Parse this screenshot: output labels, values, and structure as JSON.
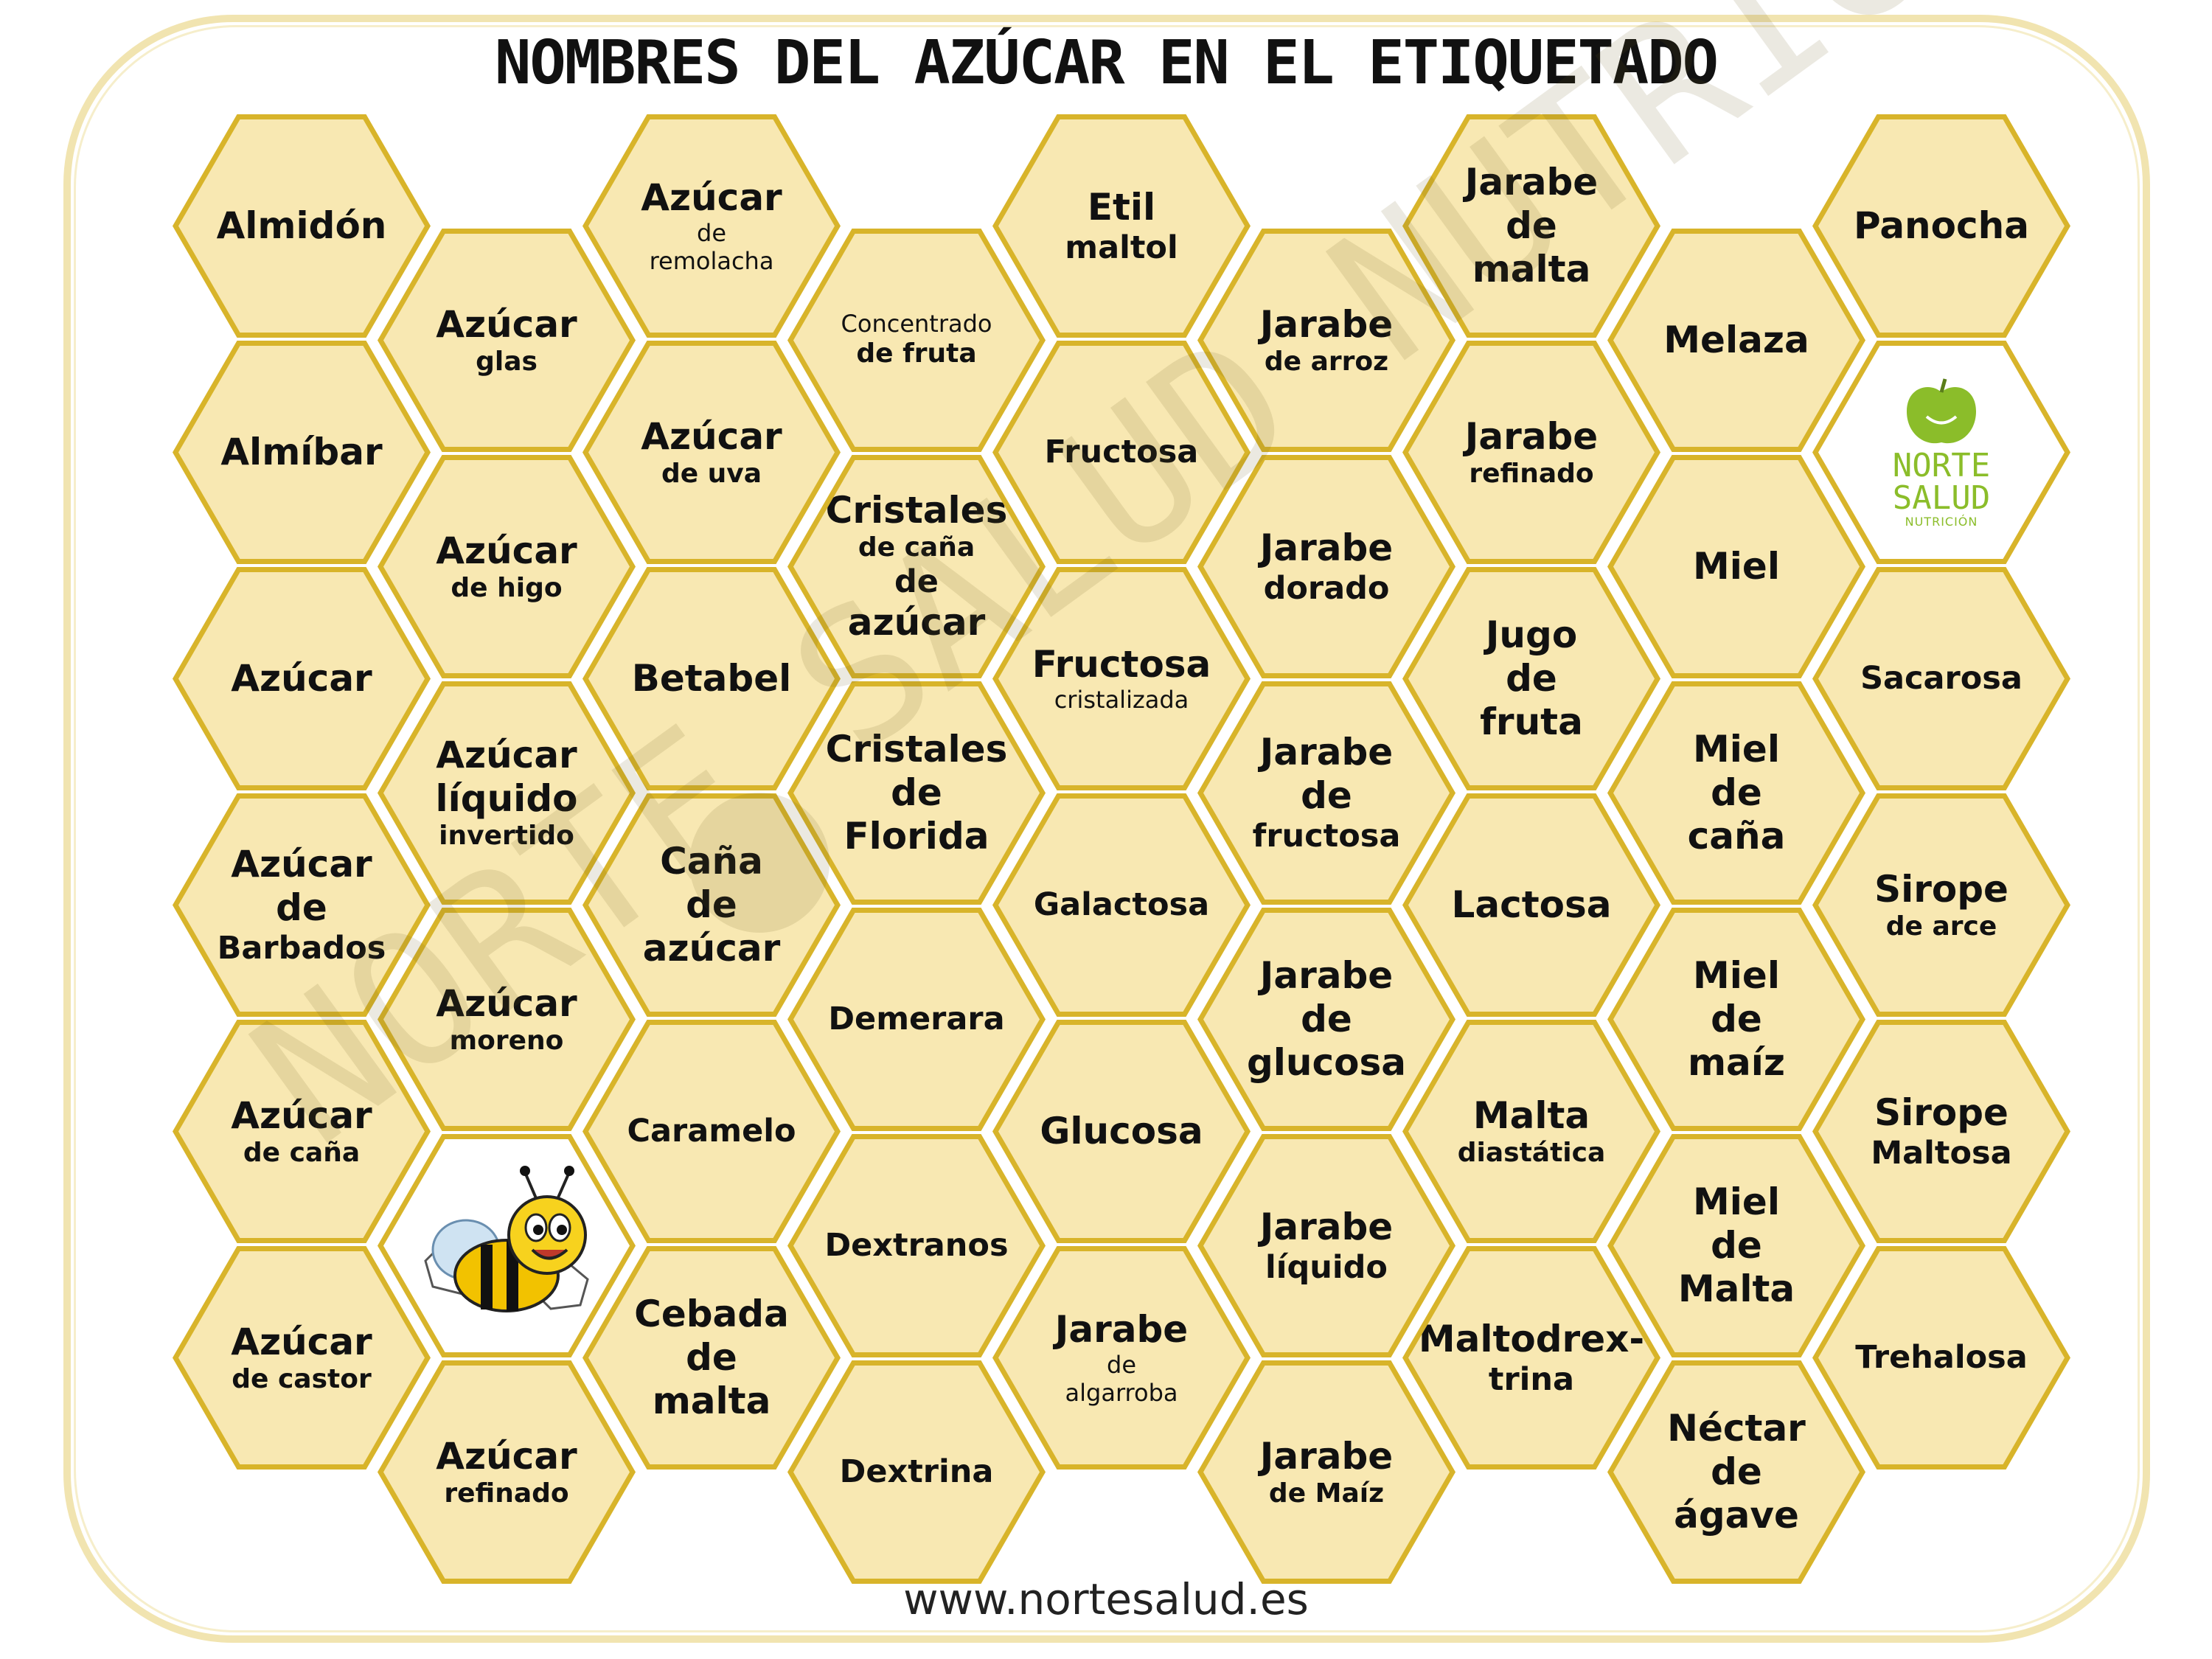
{
  "title": "NOMBRES DEL AZÚCAR EN EL ETIQUETADO",
  "footer": "www.nortesalud.es",
  "watermark": "NORTE SALUD NUTRICIÓN",
  "logo": {
    "line1": "NORTE",
    "line2": "SALUD",
    "line3": "NUTRICIÓN"
  },
  "colors": {
    "hex_border": "#d8b42a",
    "hex_fill": "#f8e8b2",
    "frame": "#f1e4b0",
    "logo_green": "#8bbd2a"
  },
  "columns": [
    {
      "cells": [
        {
          "lines": [
            "Almidón"
          ]
        },
        {
          "lines": [
            "Almíbar"
          ]
        },
        {
          "lines": [
            "Azúcar"
          ]
        },
        {
          "lines": [
            "Azúcar",
            "de",
            "Barbados"
          ]
        },
        {
          "lines": [
            "Azúcar",
            "de caña"
          ]
        },
        {
          "lines": [
            "Azúcar",
            "de castor"
          ]
        }
      ]
    },
    {
      "cells": [
        {
          "lines": [
            "Azúcar",
            "glas"
          ]
        },
        {
          "lines": [
            "Azúcar",
            "de higo"
          ]
        },
        {
          "lines": [
            "Azúcar",
            "líquido",
            "invertido"
          ]
        },
        {
          "lines": [
            "Azúcar",
            "moreno"
          ]
        },
        {
          "image": "bee-icon"
        },
        {
          "lines": [
            "Azúcar",
            "refinado"
          ]
        }
      ]
    },
    {
      "cells": [
        {
          "lines": [
            "Azúcar",
            "de",
            "remolacha"
          ]
        },
        {
          "lines": [
            "Azúcar",
            "de uva"
          ]
        },
        {
          "lines": [
            "Betabel"
          ]
        },
        {
          "lines": [
            "Caña",
            "de",
            "azúcar"
          ]
        },
        {
          "lines": [
            "Caramelo"
          ]
        },
        {
          "lines": [
            "Cebada",
            "de",
            "malta"
          ]
        }
      ]
    },
    {
      "cells": [
        {
          "lines": [
            "Concentrado",
            "de fruta"
          ]
        },
        {
          "lines": [
            "Cristales",
            "de caña",
            "de",
            "azúcar"
          ]
        },
        {
          "lines": [
            "Cristales",
            "de",
            "Florida"
          ]
        },
        {
          "lines": [
            "Demerara"
          ]
        },
        {
          "lines": [
            "Dextranos"
          ]
        },
        {
          "lines": [
            "Dextrina"
          ]
        }
      ]
    },
    {
      "cells": [
        {
          "lines": [
            "Etil",
            "maltol"
          ]
        },
        {
          "lines": [
            "Fructosa"
          ]
        },
        {
          "lines": [
            "Fructosa",
            "cristalizada"
          ]
        },
        {
          "lines": [
            "Galactosa"
          ]
        },
        {
          "lines": [
            "Glucosa"
          ]
        },
        {
          "lines": [
            "Jarabe",
            "de",
            "algarroba"
          ]
        }
      ]
    },
    {
      "cells": [
        {
          "lines": [
            "Jarabe",
            "de arroz"
          ]
        },
        {
          "lines": [
            "Jarabe",
            "dorado"
          ]
        },
        {
          "lines": [
            "Jarabe",
            "de",
            "fructosa"
          ]
        },
        {
          "lines": [
            "Jarabe",
            "de",
            "glucosa"
          ]
        },
        {
          "lines": [
            "Jarabe",
            "líquido"
          ]
        },
        {
          "lines": [
            "Jarabe",
            "de Maíz"
          ]
        }
      ]
    },
    {
      "cells": [
        {
          "lines": [
            "Jarabe",
            "de",
            "malta"
          ]
        },
        {
          "lines": [
            "Jarabe",
            "refinado"
          ]
        },
        {
          "lines": [
            "Jugo",
            "de",
            "fruta"
          ]
        },
        {
          "lines": [
            "Lactosa"
          ]
        },
        {
          "lines": [
            "Malta",
            "diastática"
          ]
        },
        {
          "lines": [
            "Maltodrex-",
            "trina"
          ]
        }
      ]
    },
    {
      "cells": [
        {
          "lines": [
            "Melaza"
          ]
        },
        {
          "lines": [
            "Miel"
          ]
        },
        {
          "lines": [
            "Miel",
            "de",
            "caña"
          ]
        },
        {
          "lines": [
            "Miel",
            "de",
            "maíz"
          ]
        },
        {
          "lines": [
            "Miel",
            "de",
            "Malta"
          ]
        },
        {
          "lines": [
            "Néctar",
            "de",
            "ágave"
          ]
        }
      ]
    },
    {
      "cells": [
        {
          "lines": [
            "Panocha"
          ]
        },
        {
          "image": "apple-logo"
        },
        {
          "lines": [
            "Sacarosa"
          ]
        },
        {
          "lines": [
            "Sirope",
            "de arce"
          ]
        },
        {
          "lines": [
            "Sirope",
            "Maltosa"
          ]
        },
        {
          "lines": [
            "Trehalosa"
          ]
        }
      ]
    }
  ]
}
